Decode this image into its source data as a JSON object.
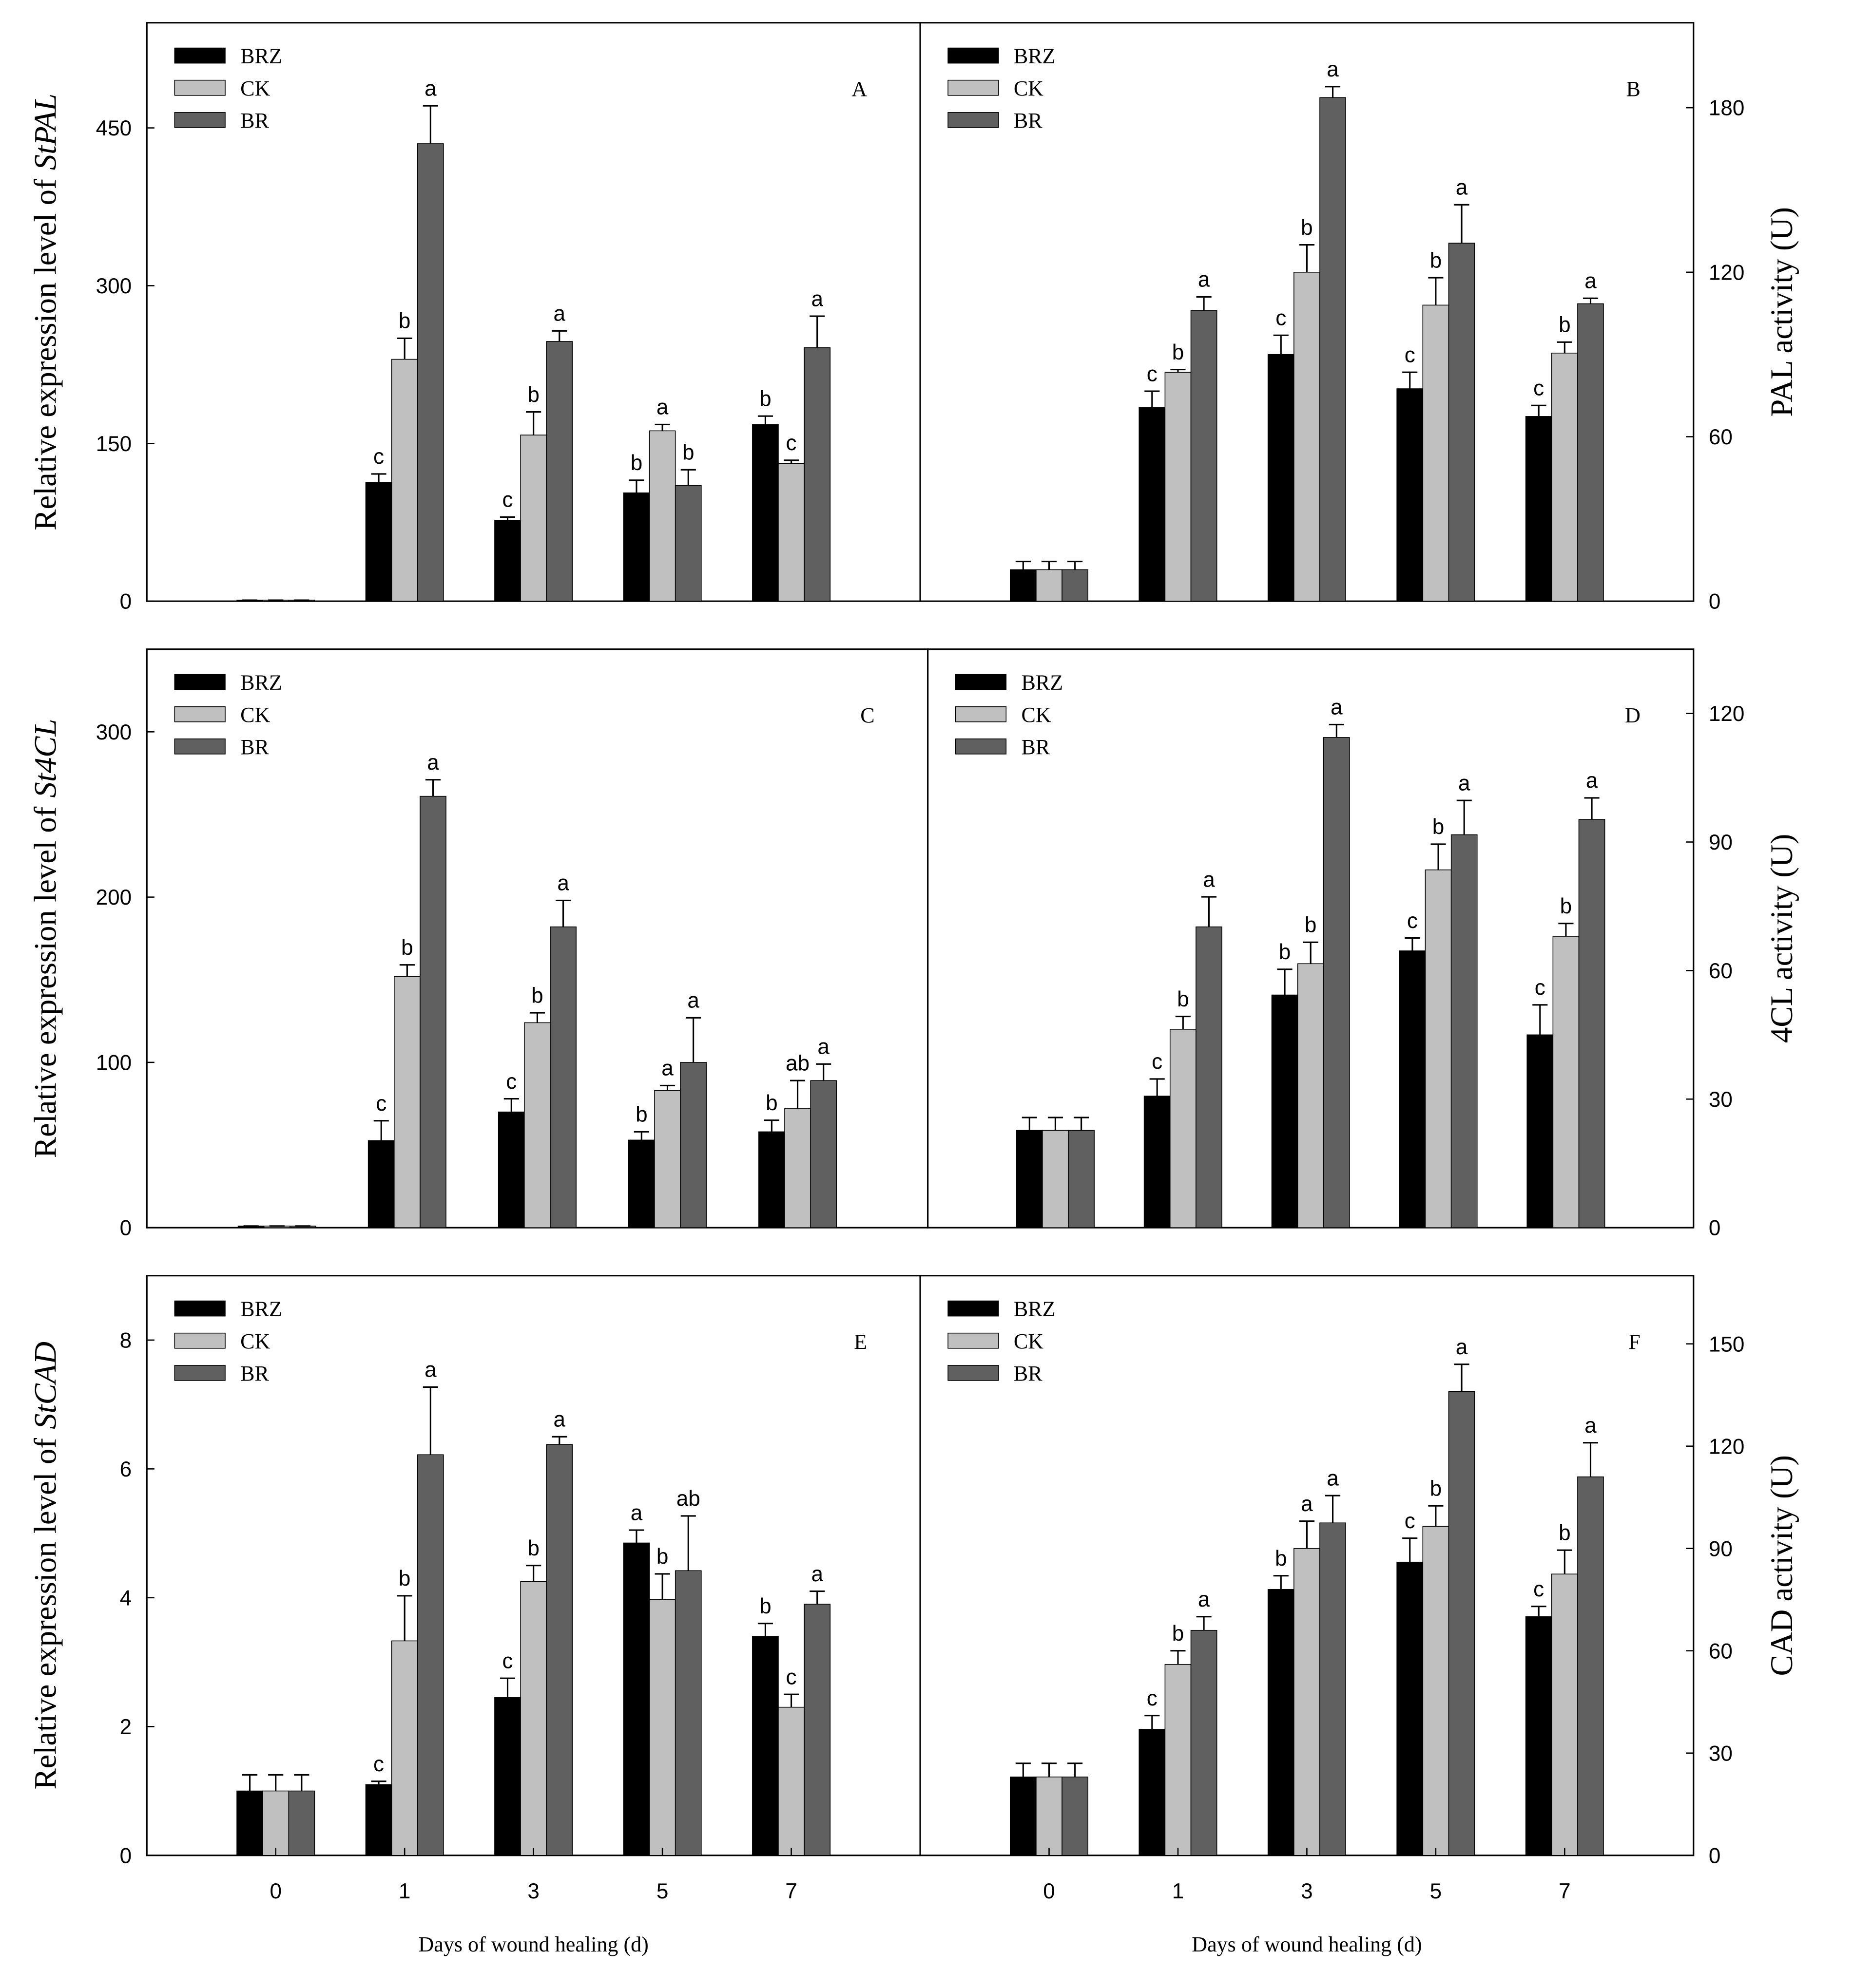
{
  "chart_data": [
    {
      "type": "bar",
      "panel": "A",
      "ylabel": "Relative expression level of",
      "gene": "StPAL",
      "yaxis_side": "left",
      "legend": "upper left",
      "ylim": [
        0,
        550
      ],
      "yticks": [
        0,
        150,
        300,
        450
      ],
      "series": [
        {
          "name": "BRZ",
          "color": "#000000",
          "values": [
            1,
            113,
            77,
            103,
            168
          ],
          "errors": [
            0,
            8,
            3,
            12,
            8
          ],
          "letters": [
            null,
            "c",
            "c",
            "b",
            "b"
          ]
        },
        {
          "name": "CK",
          "color": "#c0c0c0",
          "values": [
            1,
            230,
            158,
            162,
            131
          ],
          "errors": [
            0,
            20,
            22,
            6,
            3
          ],
          "letters": [
            null,
            "b",
            "b",
            "a",
            "c"
          ]
        },
        {
          "name": "BR",
          "color": "#606060",
          "values": [
            1,
            435,
            247,
            110,
            241
          ],
          "errors": [
            0,
            36,
            10,
            15,
            30
          ],
          "letters": [
            null,
            "a",
            "a",
            "b",
            "a"
          ]
        }
      ]
    },
    {
      "type": "bar",
      "panel": "B",
      "ylabel": "PAL activity (U)",
      "yaxis_side": "right",
      "legend": "upper left",
      "ylim": [
        0,
        211
      ],
      "yticks": [
        0,
        60,
        120,
        180
      ],
      "series": [
        {
          "name": "BRZ",
          "color": "#000000",
          "values": [
            11.5,
            70.6,
            90,
            77.5,
            67.4
          ],
          "errors": [
            3,
            6,
            7,
            6,
            4
          ],
          "letters": [
            null,
            "c",
            "c",
            "c",
            "c"
          ]
        },
        {
          "name": "CK",
          "color": "#c0c0c0",
          "values": [
            11.5,
            83.5,
            120,
            108,
            90.5
          ],
          "errors": [
            3,
            1,
            10,
            10,
            4
          ],
          "letters": [
            null,
            "b",
            "b",
            "b",
            "b"
          ]
        },
        {
          "name": "BR",
          "color": "#606060",
          "values": [
            11.5,
            106,
            183.7,
            130.6,
            108.5
          ],
          "errors": [
            3,
            5,
            4,
            14,
            2
          ],
          "letters": [
            null,
            "a",
            "a",
            "a",
            "a"
          ]
        }
      ]
    },
    {
      "type": "bar",
      "panel": "C",
      "ylabel": "Relative expression level of",
      "gene": "St4CL",
      "yaxis_side": "left",
      "legend": "upper left",
      "ylim": [
        0,
        350
      ],
      "yticks": [
        0,
        100,
        200,
        300
      ],
      "series": [
        {
          "name": "BRZ",
          "color": "#000000",
          "values": [
            1,
            52.7,
            70,
            53,
            58
          ],
          "errors": [
            0,
            12,
            8,
            5,
            7
          ],
          "letters": [
            null,
            "c",
            "c",
            "b",
            "b"
          ]
        },
        {
          "name": "CK",
          "color": "#c0c0c0",
          "values": [
            1,
            152,
            124,
            83,
            72
          ],
          "errors": [
            0,
            7,
            6,
            3,
            17
          ],
          "letters": [
            null,
            "b",
            "b",
            "a",
            "ab"
          ]
        },
        {
          "name": "BR",
          "color": "#606060",
          "values": [
            1,
            261,
            182,
            100,
            89
          ],
          "errors": [
            0,
            10,
            16,
            27,
            10
          ],
          "letters": [
            null,
            "a",
            "a",
            "a",
            "a"
          ]
        }
      ]
    },
    {
      "type": "bar",
      "panel": "D",
      "ylabel": "4CL activity (U)",
      "yaxis_side": "right",
      "legend": "upper left",
      "ylim": [
        0,
        135
      ],
      "yticks": [
        0,
        30,
        60,
        90,
        120
      ],
      "series": [
        {
          "name": "BRZ",
          "color": "#000000",
          "values": [
            22.7,
            30.7,
            54.3,
            64.6,
            45
          ],
          "errors": [
            3,
            4,
            6,
            3,
            7
          ],
          "letters": [
            null,
            "c",
            "b",
            "c",
            "c"
          ]
        },
        {
          "name": "CK",
          "color": "#c0c0c0",
          "values": [
            22.7,
            46.3,
            61.6,
            83.5,
            68
          ],
          "errors": [
            3,
            3,
            5,
            6,
            3
          ],
          "letters": [
            null,
            "b",
            "b",
            "b",
            "b"
          ]
        },
        {
          "name": "BR",
          "color": "#606060",
          "values": [
            22.7,
            70.2,
            114.4,
            91.7,
            95.3
          ],
          "errors": [
            3,
            7,
            3,
            8,
            5
          ],
          "letters": [
            null,
            "a",
            "a",
            "a",
            "a"
          ]
        }
      ]
    },
    {
      "type": "bar",
      "panel": "E",
      "ylabel": "Relative expression level of",
      "gene": "StCAD",
      "yaxis_side": "left",
      "legend": "upper left",
      "xlabel": "Days of wound healing (d)",
      "categories": [
        "0",
        "1",
        "3",
        "5",
        "7"
      ],
      "ylim": [
        0,
        9
      ],
      "yticks": [
        0,
        2,
        4,
        6,
        8
      ],
      "series": [
        {
          "name": "BRZ",
          "color": "#000000",
          "values": [
            1.0,
            1.1,
            2.45,
            4.85,
            3.4
          ],
          "errors": [
            0.25,
            0.05,
            0.3,
            0.2,
            0.2
          ],
          "letters": [
            null,
            "c",
            "c",
            "a",
            "b"
          ]
        },
        {
          "name": "CK",
          "color": "#c0c0c0",
          "values": [
            1.0,
            3.33,
            4.25,
            3.97,
            2.3
          ],
          "errors": [
            0.25,
            0.7,
            0.25,
            0.4,
            0.2
          ],
          "letters": [
            null,
            "b",
            "b",
            "b",
            "c"
          ]
        },
        {
          "name": "BR",
          "color": "#606060",
          "values": [
            1.0,
            6.22,
            6.38,
            4.42,
            3.9
          ],
          "errors": [
            0.25,
            1.05,
            0.12,
            0.85,
            0.2
          ],
          "letters": [
            null,
            "a",
            "a",
            "ab",
            "a"
          ]
        }
      ]
    },
    {
      "type": "bar",
      "panel": "F",
      "ylabel": "CAD activity (U)",
      "yaxis_side": "right",
      "legend": "upper left",
      "xlabel": "Days of wound healing (d)",
      "categories": [
        "0",
        "1",
        "3",
        "5",
        "7"
      ],
      "ylim": [
        0,
        170
      ],
      "yticks": [
        0,
        30,
        60,
        90,
        120,
        150
      ],
      "series": [
        {
          "name": "BRZ",
          "color": "#000000",
          "values": [
            23,
            37,
            78,
            86,
            70
          ],
          "errors": [
            4,
            4,
            4,
            7,
            3
          ],
          "letters": [
            null,
            "c",
            "b",
            "c",
            "c"
          ]
        },
        {
          "name": "CK",
          "color": "#c0c0c0",
          "values": [
            23,
            56,
            90,
            96.5,
            82.5
          ],
          "errors": [
            4,
            4,
            8,
            6,
            7
          ],
          "letters": [
            null,
            "b",
            "a",
            "b",
            "b"
          ]
        },
        {
          "name": "BR",
          "color": "#606060",
          "values": [
            23,
            66,
            97.5,
            136,
            111
          ],
          "errors": [
            4,
            4,
            8,
            8,
            10
          ],
          "letters": [
            null,
            "a",
            "a",
            "a",
            "a"
          ]
        }
      ]
    }
  ]
}
